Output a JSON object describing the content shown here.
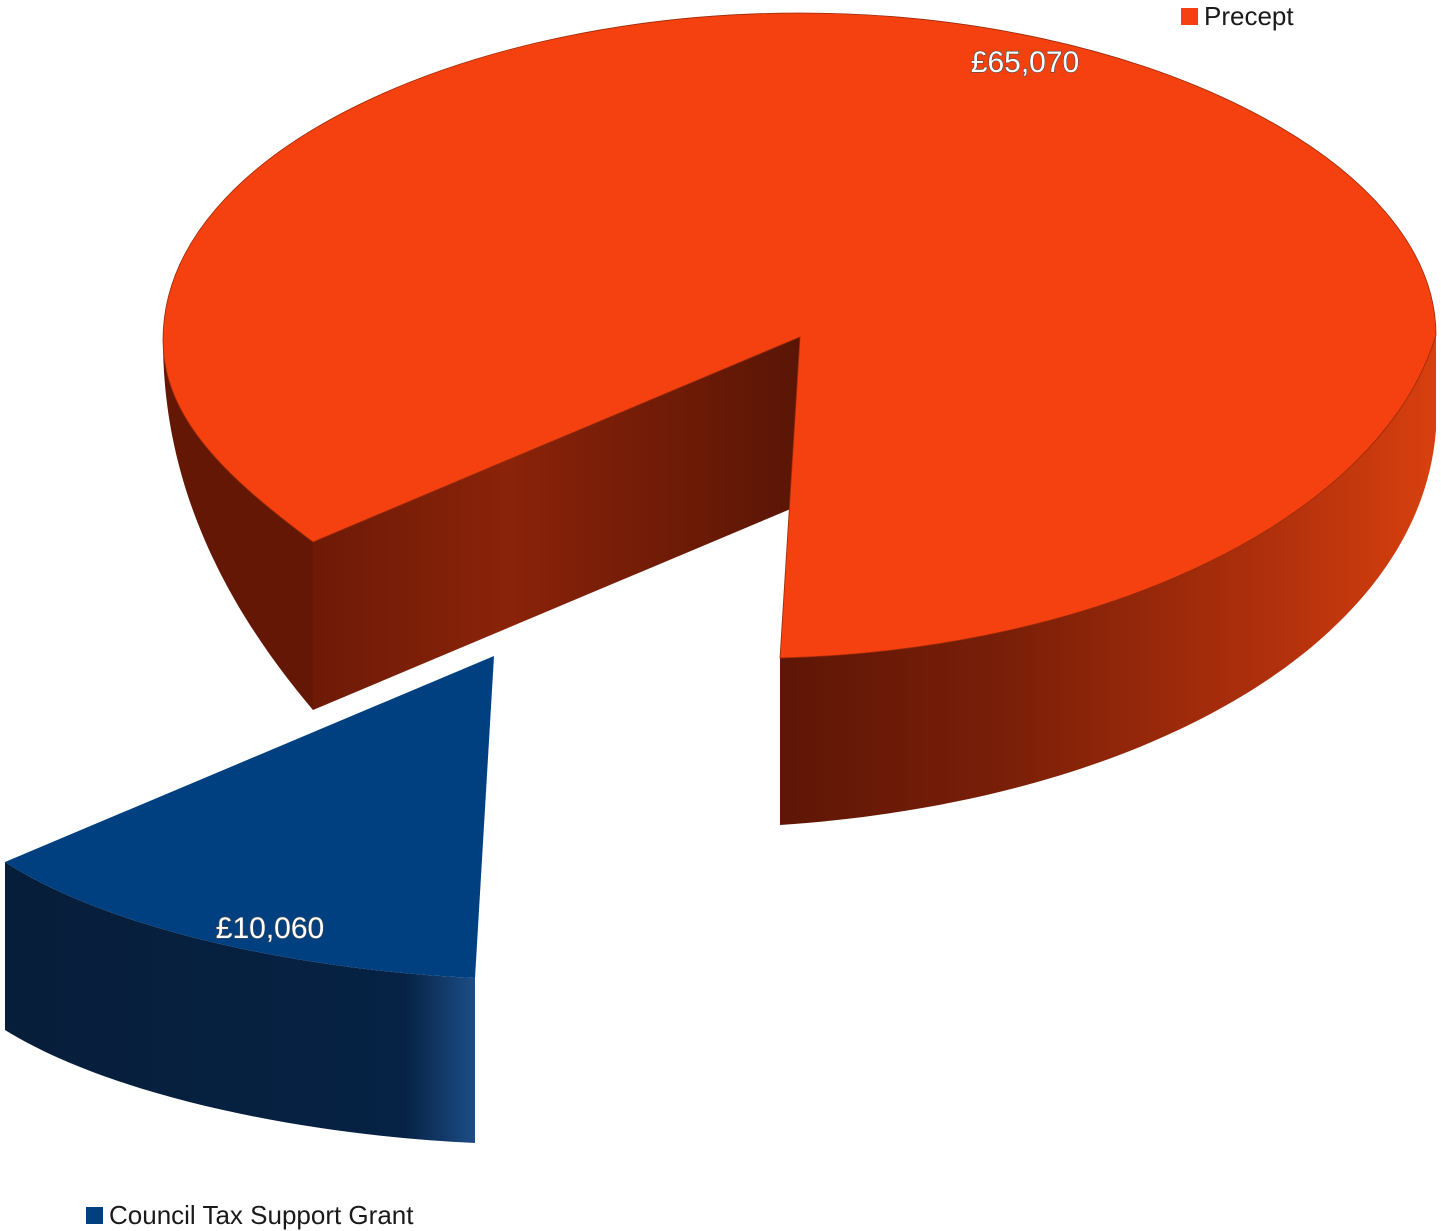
{
  "chart_data": {
    "type": "pie",
    "three_d": true,
    "exploded": true,
    "legend": "split",
    "slices": [
      {
        "name": "Precept",
        "value": 65070,
        "label": "£65,070",
        "color": "#f5410f"
      },
      {
        "name": "Council Tax Support Grant",
        "value": 10060,
        "label": "£10,060",
        "color": "#004080"
      }
    ]
  }
}
